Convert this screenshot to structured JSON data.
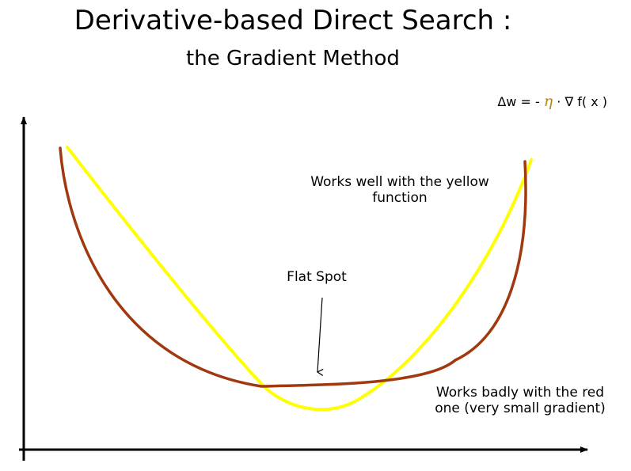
{
  "title": "Derivative-based Direct Search :",
  "subtitle": "the Gradient Method",
  "formula": {
    "lhs": "Δw = - ",
    "eta": "η",
    "rhs": " · ∇ f( x )"
  },
  "annotations": {
    "yellow": [
      "Works well with the yellow",
      "function"
    ],
    "flat_spot": "Flat Spot",
    "red": [
      "Works badly with the red",
      "one (very small gradient)"
    ]
  },
  "colors": {
    "yellow_curve": "#ffff00",
    "red_curve": "#a0390f",
    "axes": "#000000",
    "eta": "#b8860b"
  }
}
